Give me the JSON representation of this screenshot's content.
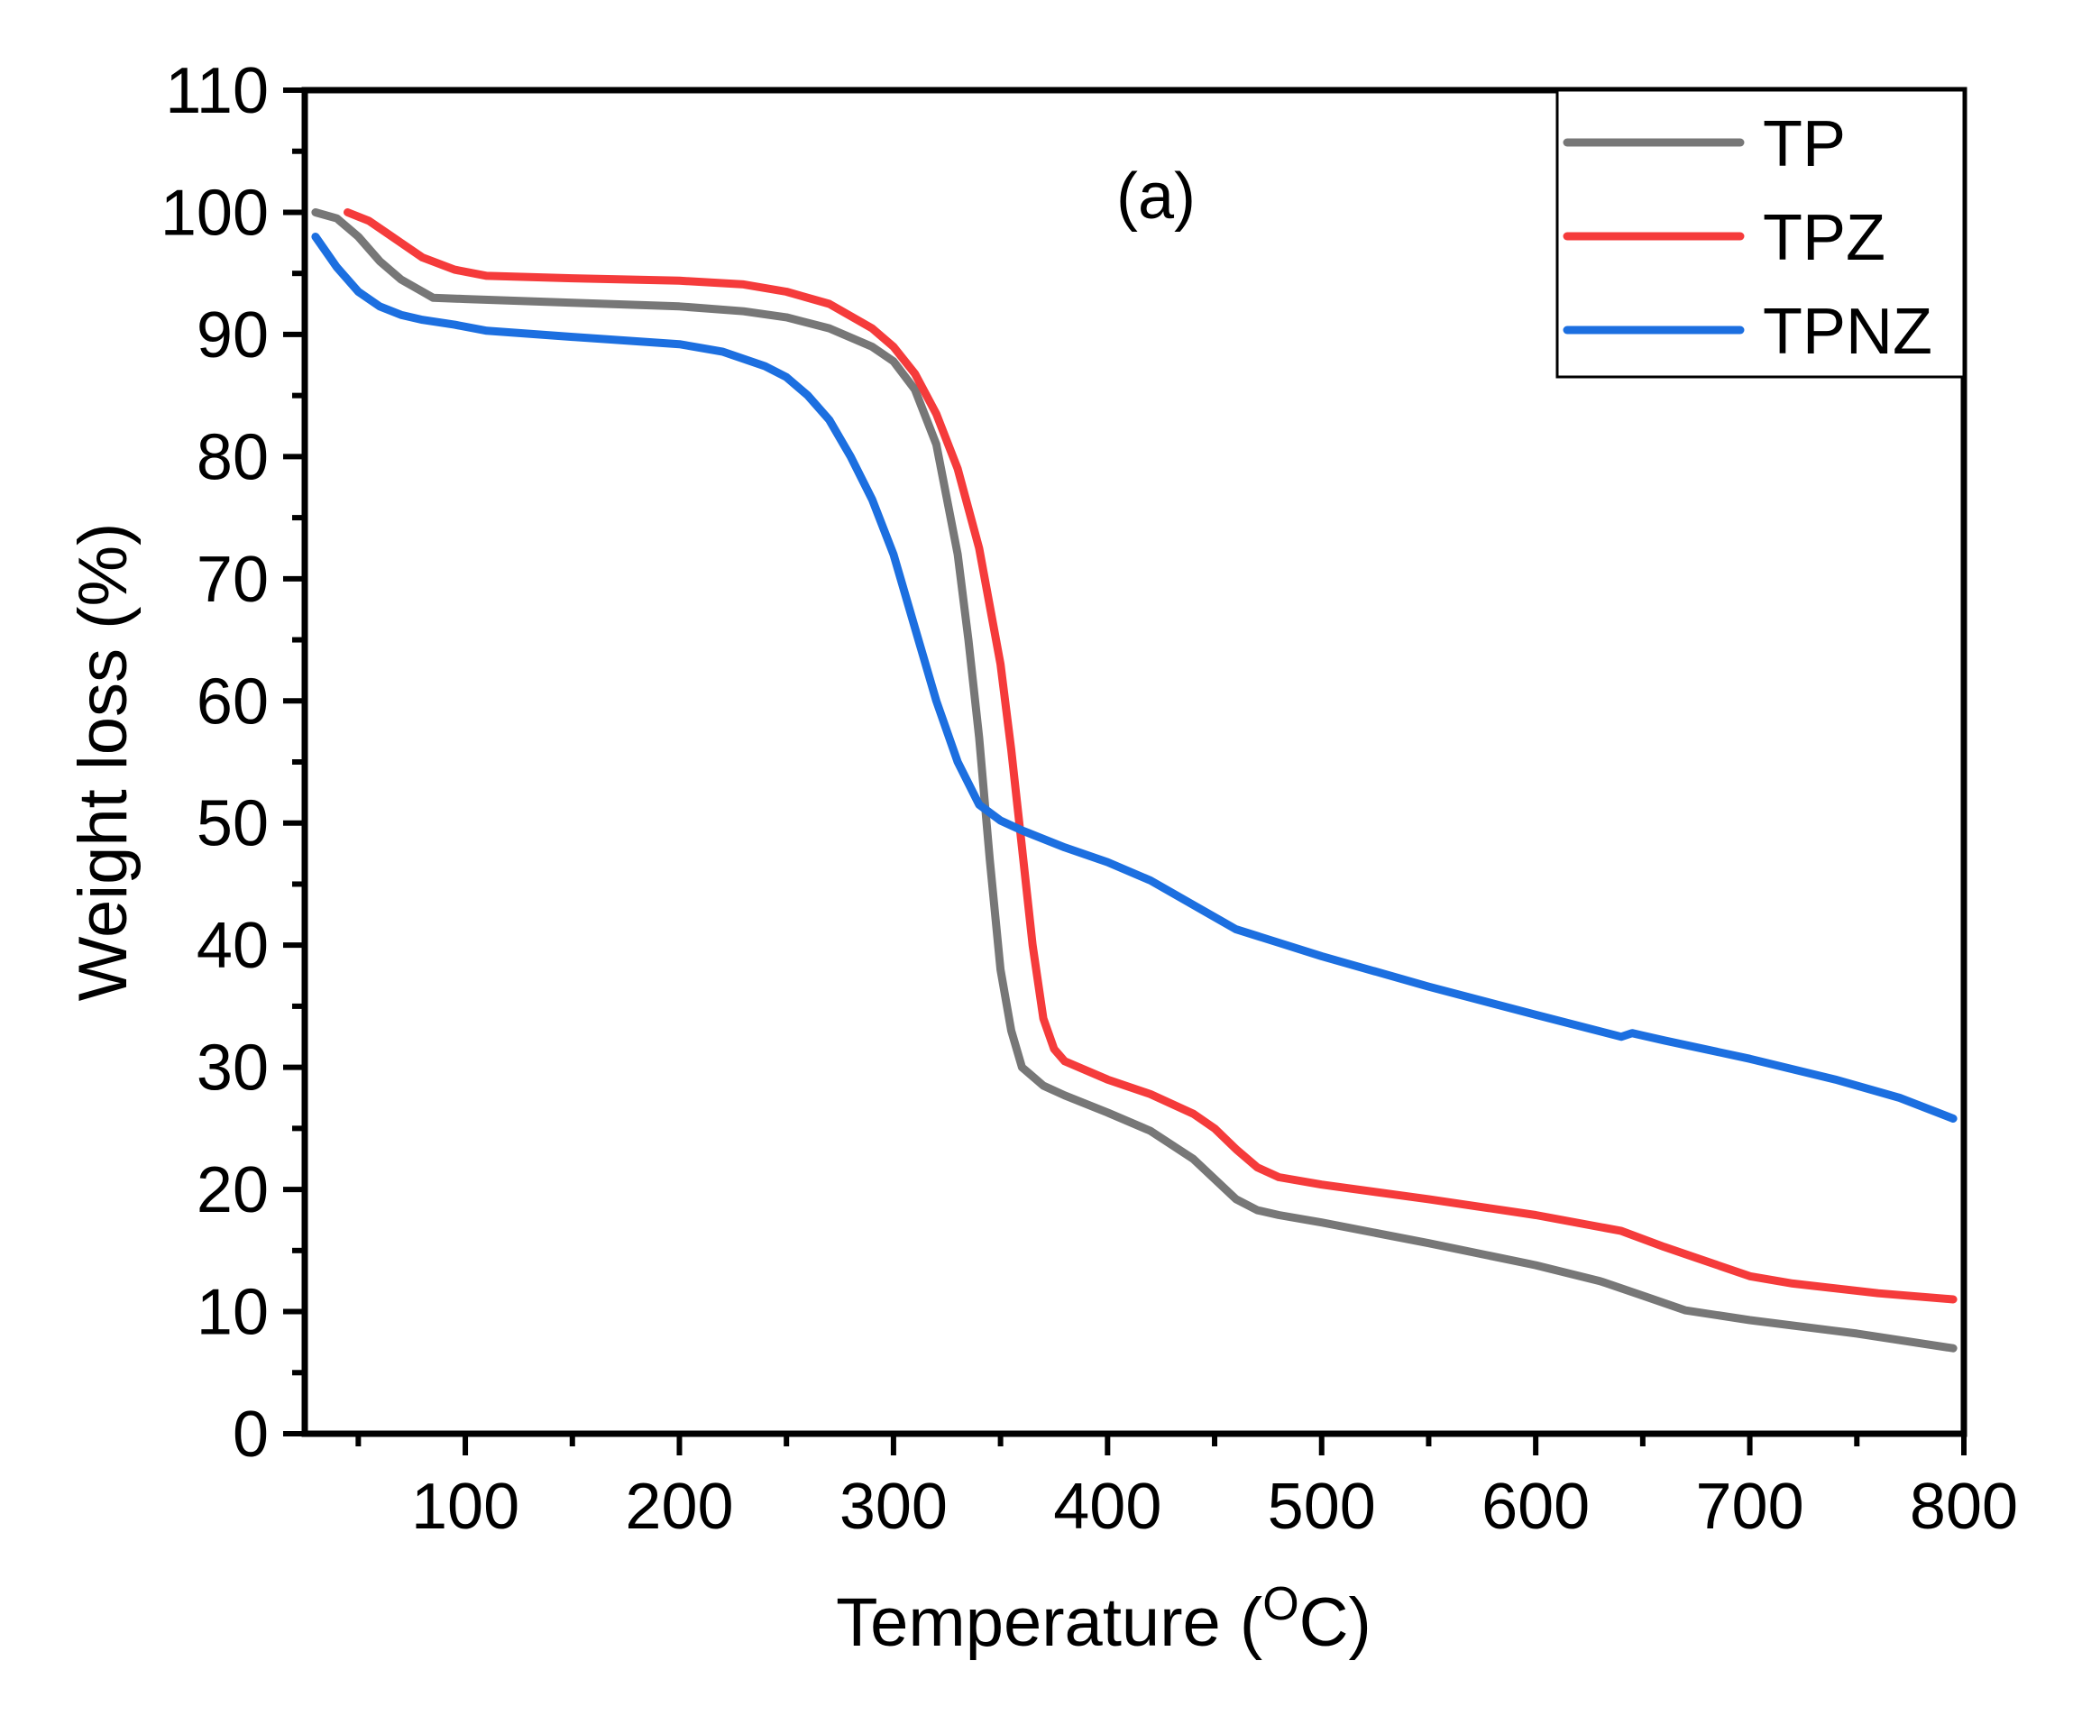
{
  "chart_data": {
    "type": "line",
    "title": "",
    "annotation": "(a)",
    "xlabel": "Temperature (",
    "xlabel_sup": "O",
    "xlabel_end": "C)",
    "ylabel": "Weight loss (%)",
    "xlim": [
      25,
      800
    ],
    "ylim": [
      0,
      110
    ],
    "xticks": [
      100,
      200,
      300,
      400,
      500,
      600,
      700,
      800
    ],
    "yticks": [
      0,
      10,
      20,
      30,
      40,
      50,
      60,
      70,
      80,
      90,
      100,
      110
    ],
    "legend_position": "top-right",
    "grid": false,
    "series": [
      {
        "name": "TP",
        "color": "#777777",
        "points": [
          [
            30,
            100
          ],
          [
            40,
            99.5
          ],
          [
            50,
            98
          ],
          [
            60,
            96
          ],
          [
            70,
            94.5
          ],
          [
            80,
            93.5
          ],
          [
            85,
            93
          ],
          [
            100,
            92.9
          ],
          [
            150,
            92.6
          ],
          [
            200,
            92.3
          ],
          [
            230,
            91.9
          ],
          [
            250,
            91.4
          ],
          [
            270,
            90.5
          ],
          [
            290,
            89
          ],
          [
            300,
            87.8
          ],
          [
            310,
            85.5
          ],
          [
            320,
            81
          ],
          [
            330,
            72
          ],
          [
            335,
            65
          ],
          [
            340,
            57
          ],
          [
            345,
            47
          ],
          [
            350,
            38
          ],
          [
            355,
            33
          ],
          [
            360,
            30
          ],
          [
            370,
            28.5
          ],
          [
            380,
            27.7
          ],
          [
            400,
            26.3
          ],
          [
            420,
            24.8
          ],
          [
            440,
            22.5
          ],
          [
            460,
            19.2
          ],
          [
            470,
            18.3
          ],
          [
            480,
            17.9
          ],
          [
            500,
            17.3
          ],
          [
            550,
            15.6
          ],
          [
            600,
            13.8
          ],
          [
            630,
            12.5
          ],
          [
            650,
            11.3
          ],
          [
            670,
            10.1
          ],
          [
            700,
            9.3
          ],
          [
            750,
            8.2
          ],
          [
            795,
            7
          ]
        ]
      },
      {
        "name": "TPZ",
        "color": "#f53b3b",
        "points": [
          [
            45,
            100
          ],
          [
            55,
            99.3
          ],
          [
            70,
            97.5
          ],
          [
            80,
            96.3
          ],
          [
            95,
            95.3
          ],
          [
            110,
            94.8
          ],
          [
            150,
            94.6
          ],
          [
            200,
            94.4
          ],
          [
            230,
            94.1
          ],
          [
            250,
            93.5
          ],
          [
            270,
            92.5
          ],
          [
            290,
            90.5
          ],
          [
            300,
            89
          ],
          [
            310,
            86.8
          ],
          [
            320,
            83.5
          ],
          [
            330,
            79
          ],
          [
            340,
            72.5
          ],
          [
            350,
            63
          ],
          [
            355,
            56
          ],
          [
            360,
            48
          ],
          [
            365,
            40
          ],
          [
            370,
            34
          ],
          [
            375,
            31.5
          ],
          [
            380,
            30.5
          ],
          [
            400,
            29
          ],
          [
            420,
            27.8
          ],
          [
            440,
            26.2
          ],
          [
            450,
            25
          ],
          [
            460,
            23.3
          ],
          [
            470,
            21.8
          ],
          [
            480,
            21
          ],
          [
            500,
            20.4
          ],
          [
            550,
            19.2
          ],
          [
            600,
            17.9
          ],
          [
            640,
            16.6
          ],
          [
            660,
            15.3
          ],
          [
            680,
            14.1
          ],
          [
            700,
            12.9
          ],
          [
            720,
            12.3
          ],
          [
            760,
            11.5
          ],
          [
            795,
            11
          ]
        ]
      },
      {
        "name": "TPNZ",
        "color": "#1c6fe0",
        "points": [
          [
            30,
            98
          ],
          [
            40,
            95.5
          ],
          [
            50,
            93.5
          ],
          [
            60,
            92.3
          ],
          [
            70,
            91.6
          ],
          [
            80,
            91.2
          ],
          [
            95,
            90.8
          ],
          [
            110,
            90.3
          ],
          [
            150,
            89.8
          ],
          [
            200,
            89.2
          ],
          [
            220,
            88.6
          ],
          [
            240,
            87.4
          ],
          [
            250,
            86.5
          ],
          [
            260,
            85
          ],
          [
            270,
            83
          ],
          [
            280,
            80
          ],
          [
            290,
            76.5
          ],
          [
            300,
            72
          ],
          [
            310,
            66
          ],
          [
            320,
            60
          ],
          [
            330,
            55
          ],
          [
            340,
            51.5
          ],
          [
            350,
            50.2
          ],
          [
            360,
            49.4
          ],
          [
            380,
            48
          ],
          [
            400,
            46.8
          ],
          [
            420,
            45.3
          ],
          [
            440,
            43.3
          ],
          [
            460,
            41.3
          ],
          [
            480,
            40.2
          ],
          [
            500,
            39.1
          ],
          [
            550,
            36.6
          ],
          [
            600,
            34.3
          ],
          [
            640,
            32.5
          ],
          [
            645,
            32.8
          ],
          [
            660,
            32.2
          ],
          [
            700,
            30.7
          ],
          [
            740,
            29
          ],
          [
            770,
            27.5
          ],
          [
            795,
            25.8
          ]
        ]
      }
    ]
  }
}
